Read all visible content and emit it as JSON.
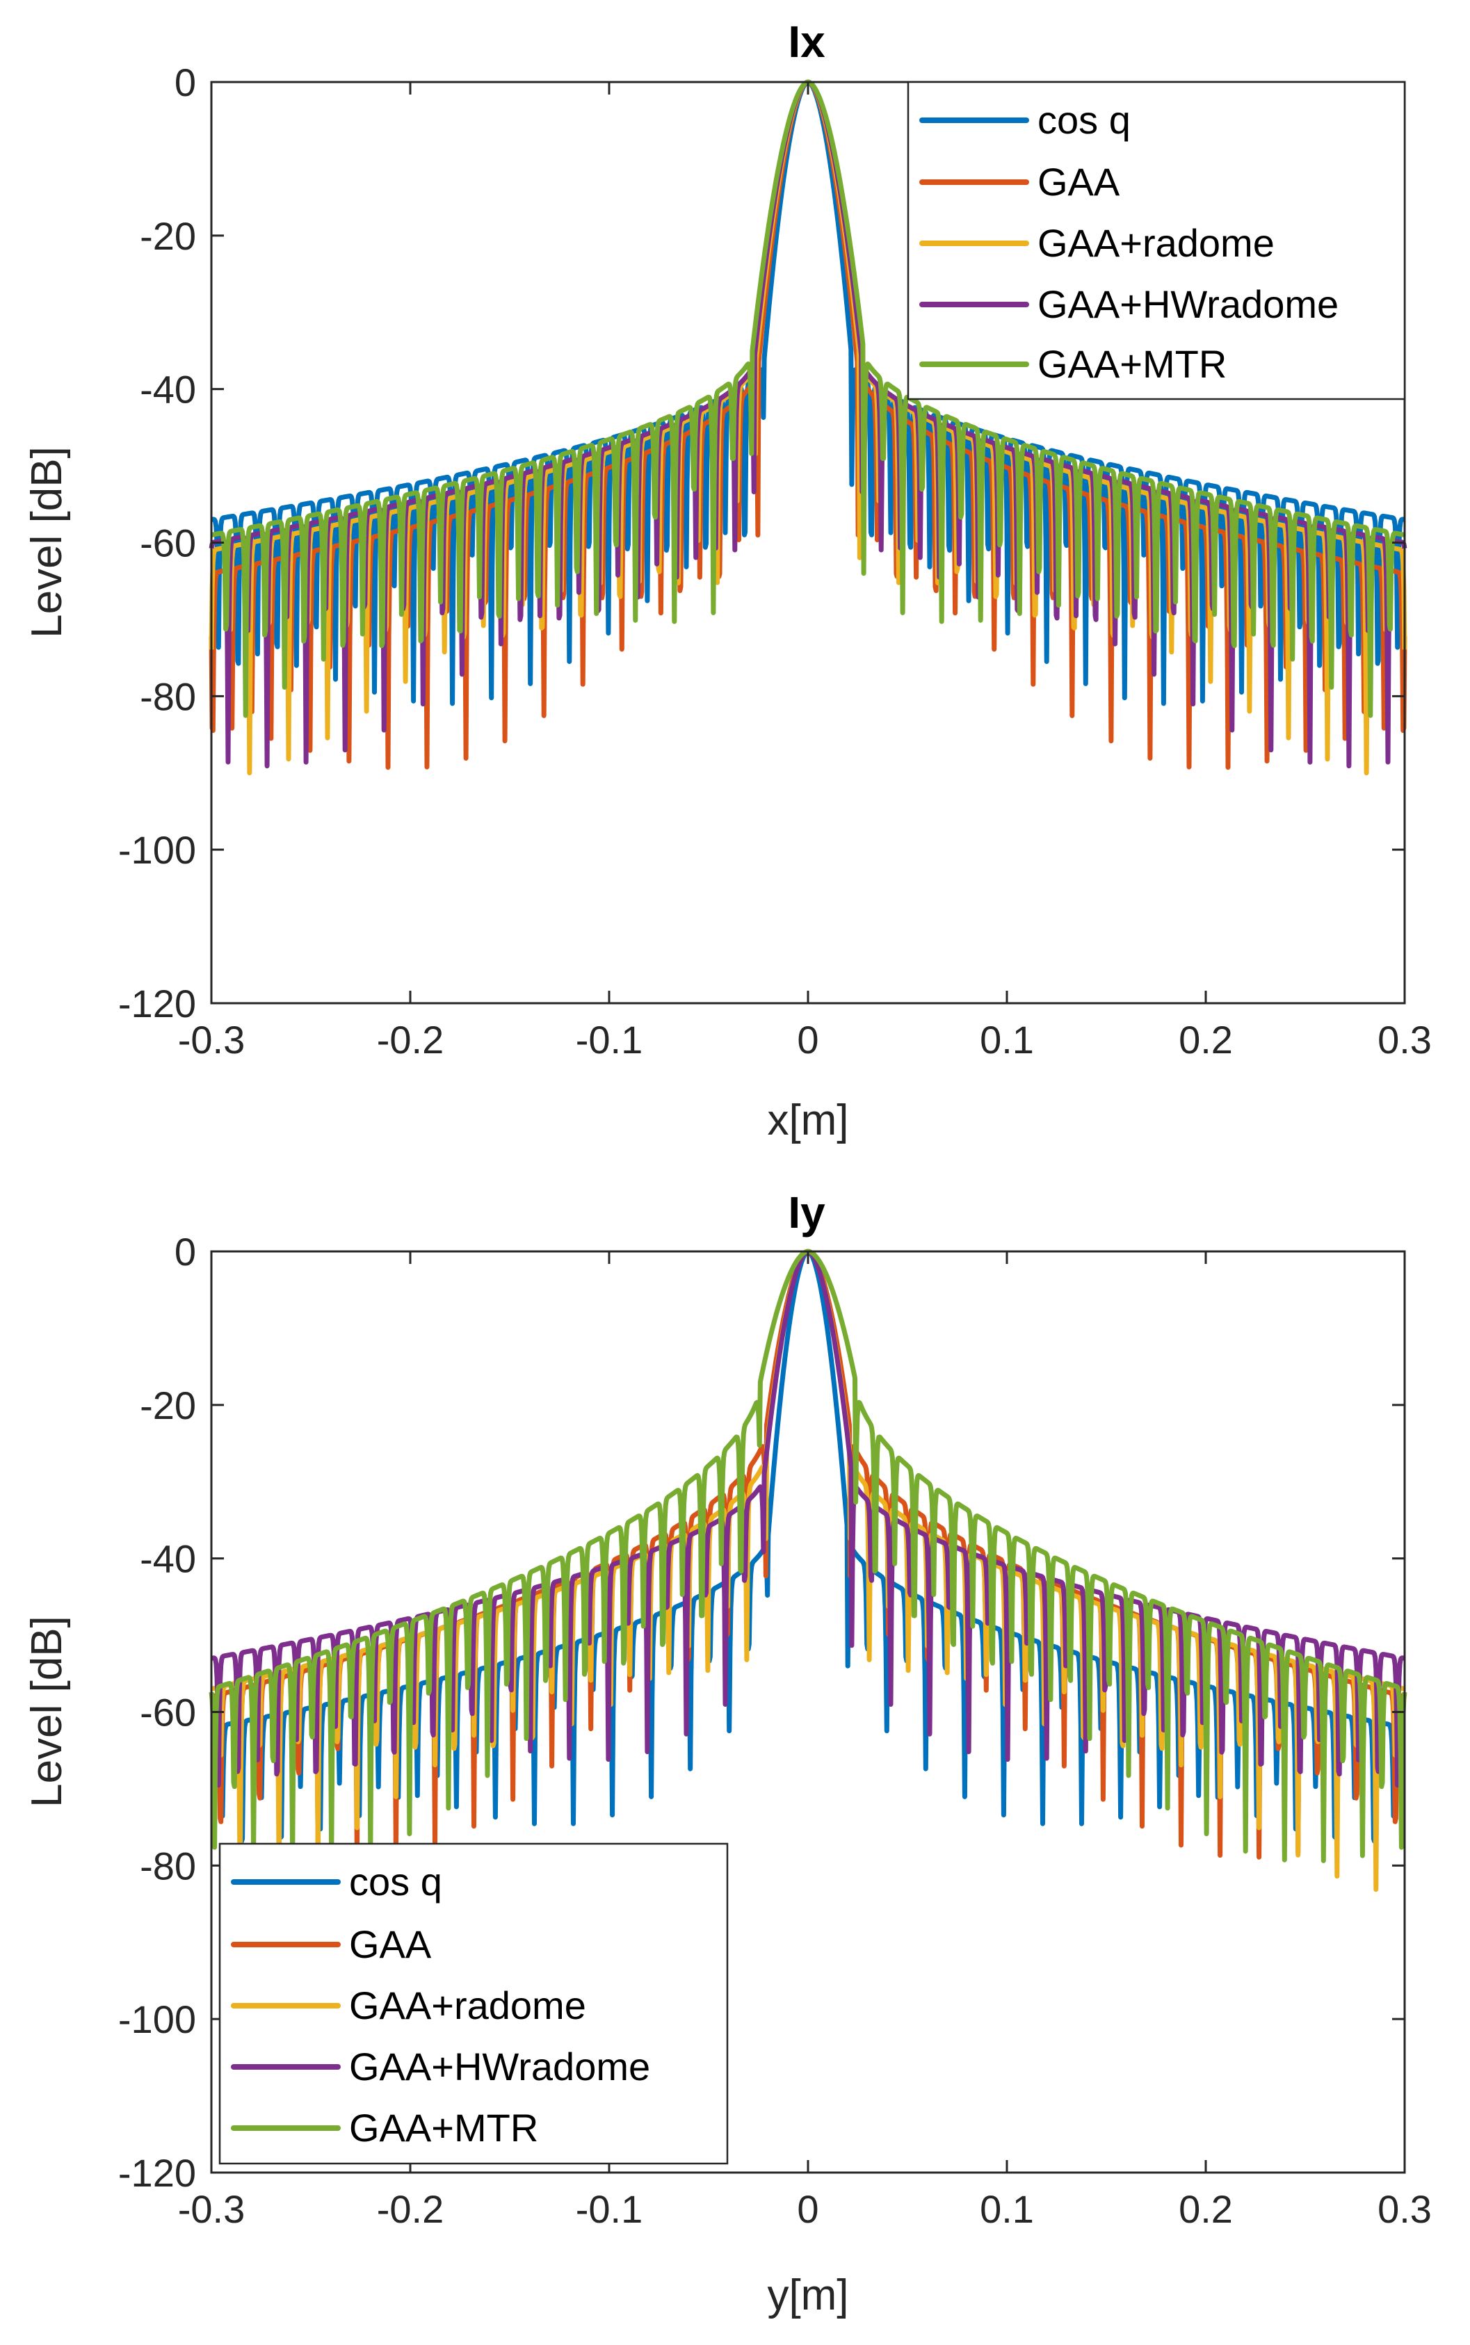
{
  "colors": {
    "cos_q": "#0072BD",
    "gaa": "#D95319",
    "gaa_radome": "#EDB120",
    "gaa_hwradome": "#7E2F8E",
    "gaa_mtr": "#77AC30",
    "axis": "#262626"
  },
  "chart_data": [
    {
      "type": "line",
      "title": "Ix",
      "xlabel": "x[m]",
      "ylabel": "Level [dB]",
      "xlim": [
        -0.3,
        0.3
      ],
      "ylim": [
        -120,
        0
      ],
      "xticks": [
        -0.3,
        -0.2,
        -0.1,
        0,
        0.1,
        0.2,
        0.3
      ],
      "xtick_labels": [
        "-0.3",
        "-0.2",
        "-0.1",
        "0",
        "0.1",
        "0.2",
        "0.3"
      ],
      "yticks": [
        0,
        -20,
        -40,
        -60,
        -80,
        -100,
        -120
      ],
      "ytick_labels": [
        "0",
        "-20",
        "-40",
        "-60",
        "-80",
        "-100",
        "-120"
      ],
      "legend_position": "top-right",
      "series": [
        {
          "name": "cos q",
          "color_key": "cos_q",
          "main_halfwidth": 0.022,
          "sll_center": -36,
          "sll_edge": -57,
          "period": 0.0098,
          "null_depth": 16,
          "seed": 1.3
        },
        {
          "name": "GAA",
          "color_key": "gaa",
          "main_halfwidth": 0.025,
          "sll_center": -37,
          "sll_edge": -64,
          "period": 0.0098,
          "null_depth": 18,
          "seed": 2.1
        },
        {
          "name": "GAA+radome",
          "color_key": "gaa_radome",
          "main_halfwidth": 0.026,
          "sll_center": -36,
          "sll_edge": -61,
          "period": 0.0098,
          "null_depth": 16,
          "seed": 3.7
        },
        {
          "name": "GAA+HWradome",
          "color_key": "gaa_hwradome",
          "main_halfwidth": 0.027,
          "sll_center": -36,
          "sll_edge": -60,
          "period": 0.0098,
          "null_depth": 17,
          "seed": 4.4
        },
        {
          "name": "GAA+MTR",
          "color_key": "gaa_mtr",
          "main_halfwidth": 0.028,
          "sll_center": -35,
          "sll_edge": -59,
          "period": 0.0098,
          "null_depth": 15,
          "seed": 5.9
        }
      ]
    },
    {
      "type": "line",
      "title": "Iy",
      "xlabel": "y[m]",
      "ylabel": "Level [dB]",
      "xlim": [
        -0.3,
        0.3
      ],
      "ylim": [
        -120,
        0
      ],
      "xticks": [
        -0.3,
        -0.2,
        -0.1,
        0,
        0.1,
        0.2,
        0.3
      ],
      "xtick_labels": [
        "-0.3",
        "-0.2",
        "-0.1",
        "0",
        "0.1",
        "0.2",
        "0.3"
      ],
      "yticks": [
        0,
        -20,
        -40,
        -60,
        -80,
        -100,
        -120
      ],
      "ytick_labels": [
        "0",
        "-20",
        "-40",
        "-60",
        "-80",
        "-100",
        "-120"
      ],
      "legend_position": "bottom-left",
      "series": [
        {
          "name": "cos q",
          "color_key": "cos_q",
          "main_halfwidth": 0.02,
          "sll_center": -37,
          "sll_edge": -62,
          "period": 0.0098,
          "null_depth": 10,
          "seed": 1.1
        },
        {
          "name": "GAA",
          "color_key": "gaa",
          "main_halfwidth": 0.021,
          "sll_center": -23,
          "sll_edge": -58,
          "period": 0.0098,
          "null_depth": 14,
          "seed": 2.6
        },
        {
          "name": "GAA+radome",
          "color_key": "gaa_radome",
          "main_halfwidth": 0.021,
          "sll_center": -26,
          "sll_edge": -57,
          "period": 0.0098,
          "null_depth": 13,
          "seed": 3.2
        },
        {
          "name": "GAA+HWradome",
          "color_key": "gaa_hwradome",
          "main_halfwidth": 0.022,
          "sll_center": -29,
          "sll_edge": -53,
          "period": 0.0098,
          "null_depth": 12,
          "seed": 4.8
        },
        {
          "name": "GAA+MTR",
          "color_key": "gaa_mtr",
          "main_halfwidth": 0.024,
          "sll_center": -17,
          "sll_edge": -57,
          "period": 0.0098,
          "null_depth": 14,
          "seed": 5.5
        }
      ]
    }
  ]
}
